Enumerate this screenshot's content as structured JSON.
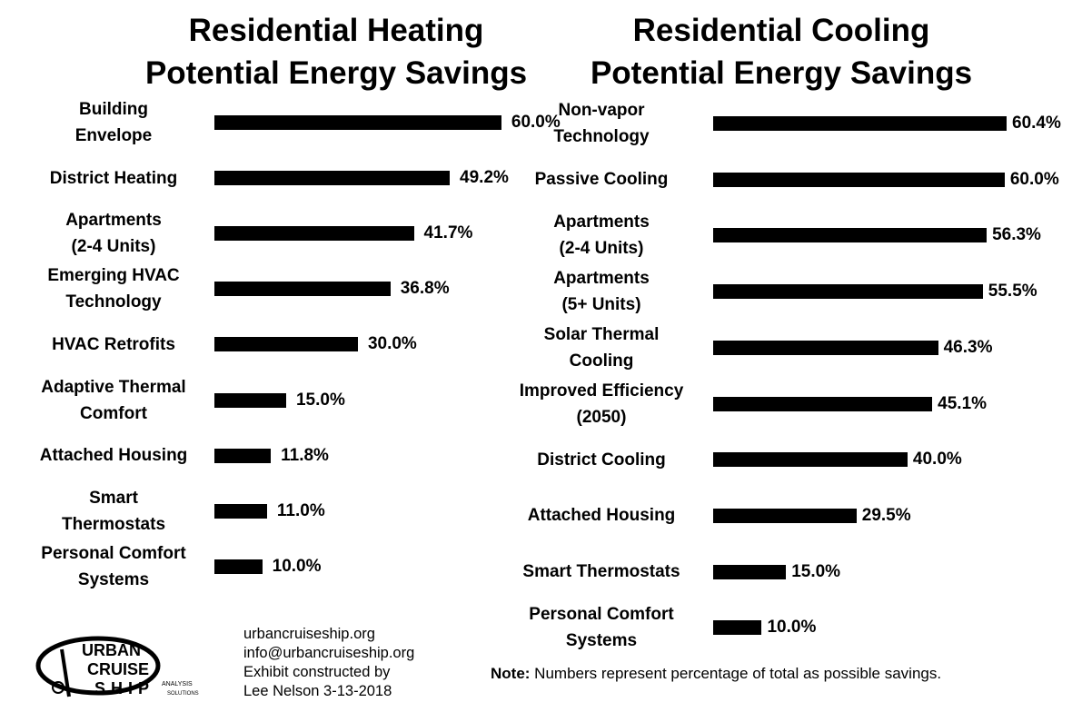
{
  "heating": {
    "title_line1": "Residential Heating",
    "title_line2": "Potential Energy Savings"
  },
  "cooling": {
    "title_line1": "Residential Cooling",
    "title_line2": "Potential Energy Savings"
  },
  "chart_data": [
    {
      "type": "bar",
      "orientation": "horizontal",
      "title": "Residential Heating Potential Energy Savings",
      "categories": [
        "Building\nEnvelope",
        "District Heating",
        "Apartments\n(2-4 Units)",
        "Emerging HVAC\nTechnology",
        "HVAC Retrofits",
        "Adaptive Thermal\nComfort",
        "Attached Housing",
        "Smart\nThermostats",
        "Personal Comfort\nSystems"
      ],
      "values": [
        60.0,
        49.2,
        41.7,
        36.8,
        30.0,
        15.0,
        11.8,
        11.0,
        10.0
      ],
      "value_labels": [
        "60.0%",
        "49.2%",
        "41.7%",
        "36.8%",
        "30.0%",
        "15.0%",
        "11.8%",
        "11.0%",
        "10.0%"
      ],
      "xlim": [
        0,
        60.4
      ],
      "grid": false,
      "bar_color": "#000000"
    },
    {
      "type": "bar",
      "orientation": "horizontal",
      "title": "Residential Cooling Potential Energy Savings",
      "categories": [
        "Non-vapor\nTechnology",
        "Passive Cooling",
        "Apartments\n(2-4 Units)",
        "Apartments\n(5+ Units)",
        "Solar Thermal\nCooling",
        "Improved Efficiency\n(2050)",
        "District Cooling",
        "Attached Housing",
        "Smart Thermostats",
        "Personal Comfort\nSystems"
      ],
      "values": [
        60.4,
        60.0,
        56.3,
        55.5,
        46.3,
        45.1,
        40.0,
        29.5,
        15.0,
        10.0
      ],
      "value_labels": [
        "60.4%",
        "60.0%",
        "56.3%",
        "55.5%",
        "46.3%",
        "45.1%",
        "40.0%",
        "29.5%",
        "15.0%",
        "10.0%"
      ],
      "xlim": [
        0,
        60.4
      ],
      "grid": false,
      "bar_color": "#000000"
    }
  ],
  "footer": {
    "website": "urbancruiseship.org",
    "email": "info@urbancruiseship.org",
    "credit_line1": "Exhibit constructed by",
    "credit_line2": "Lee Nelson 3-13-2018"
  },
  "note": {
    "label": "Note:",
    "text": " Numbers represent percentage of total as possible savings."
  },
  "logo": {
    "line1": "URBAN",
    "line2": "CRUISE",
    "line3": "SHIP",
    "tag1": "ANALYSIS",
    "tag2": "SOLUTIONS"
  }
}
